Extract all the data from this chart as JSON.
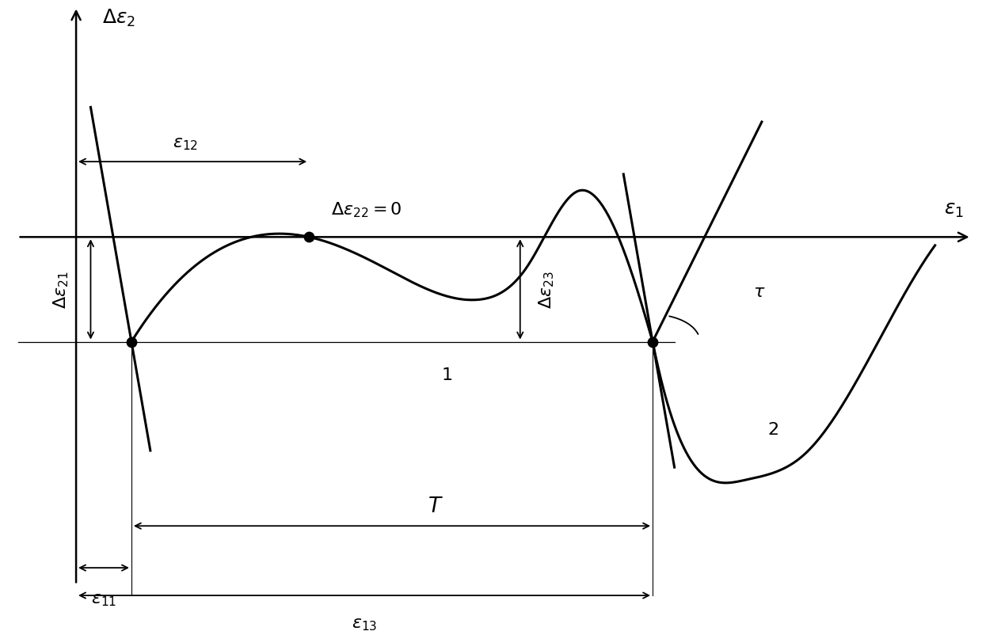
{
  "bg_color": "#ffffff",
  "curve_color": "#000000",
  "lw_curve": 2.2,
  "lw_axis": 1.8,
  "lw_annot": 1.3,
  "fs_label": 18,
  "fs_annot": 16,
  "xlim": [
    -0.5,
    6.2
  ],
  "ylim": [
    -4.5,
    2.8
  ],
  "x_p1": 0.38,
  "y_p1": -1.25,
  "x_p2": 1.6,
  "y_p2": 0.0,
  "x_p3": 3.96,
  "y_p3": -1.25,
  "T_period": 3.58,
  "A_wave": 0.95,
  "y_trough": -0.75,
  "x_trough": 2.75,
  "x_peak2": 3.45,
  "y_peak2": 0.55
}
